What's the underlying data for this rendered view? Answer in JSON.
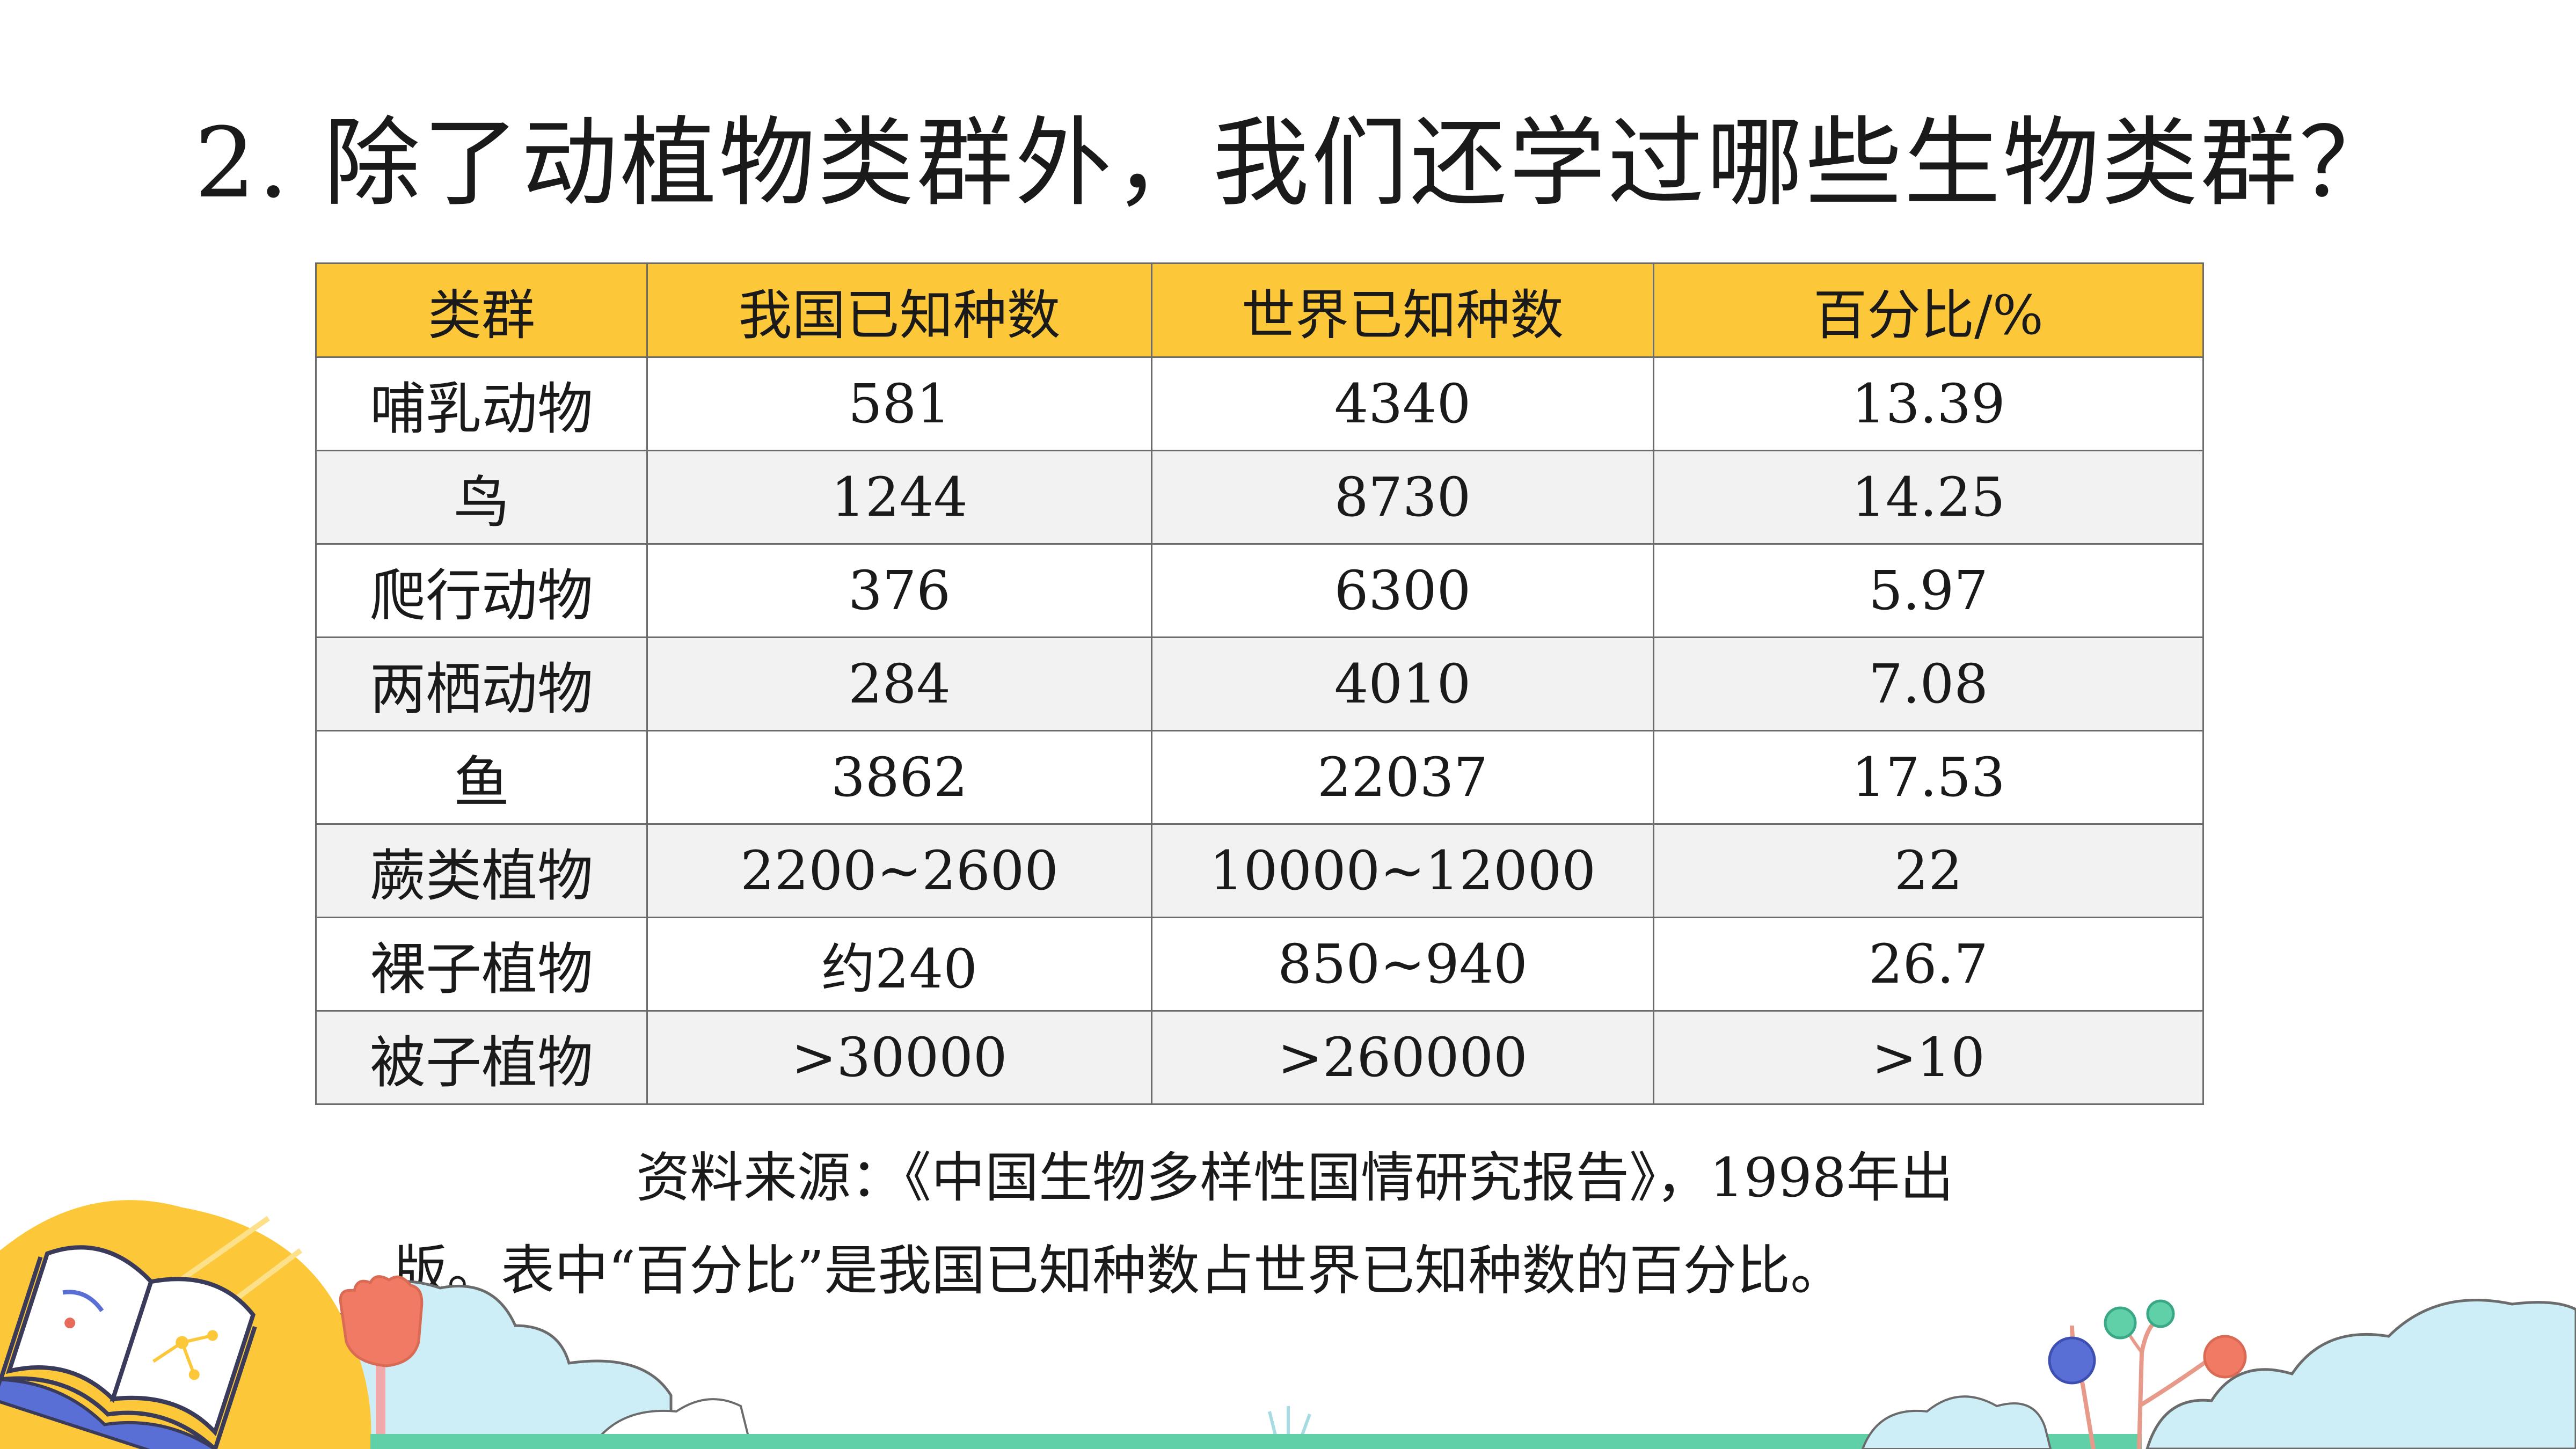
{
  "question": "2.  除了动植物类群外，我们还学过哪些生物类群？",
  "table": {
    "headers": [
      "类群",
      "我国已知种数",
      "世界已知种数",
      "百分比/%"
    ],
    "rows": [
      [
        "哺乳动物",
        "581",
        "4340",
        "13.39"
      ],
      [
        "鸟",
        "1244",
        "8730",
        "14.25"
      ],
      [
        "爬行动物",
        "376",
        "6300",
        "5.97"
      ],
      [
        "两栖动物",
        "284",
        "4010",
        "7.08"
      ],
      [
        "鱼",
        "3862",
        "22037",
        "17.53"
      ],
      [
        "蕨类植物",
        "2200~2600",
        "10000~12000",
        "22"
      ],
      [
        "裸子植物",
        "约240",
        "850~940",
        "26.7"
      ],
      [
        "被子植物",
        ">30000",
        ">260000",
        ">10"
      ]
    ]
  },
  "source": {
    "line1": "资料来源：《中国生物多样性国情研究报告》，1998年出",
    "line2": "版。表中“百分比”是我国已知种数占世界已知种数的百分比。"
  },
  "colors": {
    "header_bg": "#fcc83a",
    "stripe_bg": "#f2f2f2",
    "border": "#6b6b6b",
    "cloud": "#cdeef7",
    "sun": "#fcc83a",
    "ground": "#5fd0a8"
  },
  "icons": [
    "open-book-icon",
    "hand-icon",
    "lollipop-tree-icon",
    "cloud-icon",
    "grass-icon"
  ]
}
